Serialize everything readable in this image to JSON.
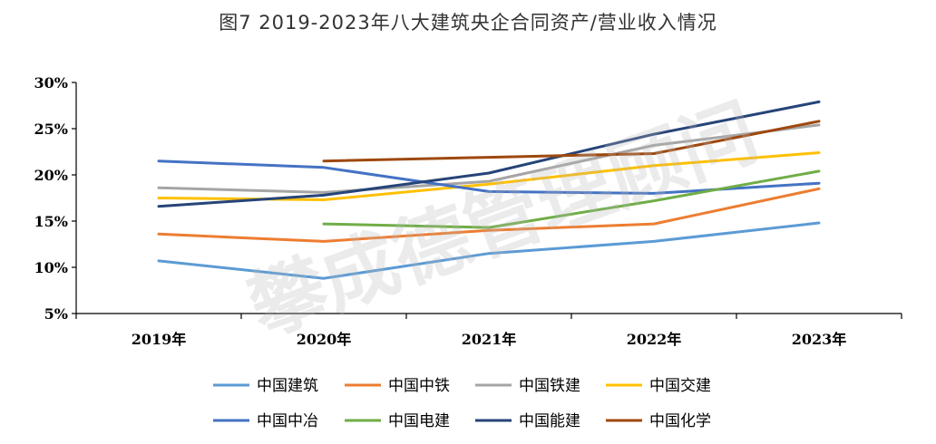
{
  "chart_data": {
    "type": "line",
    "title": "图7 2019-2023年八大建筑央企合同资产/营业收入情况",
    "xlabel": "",
    "ylabel": "",
    "categories": [
      "2019年",
      "2020年",
      "2021年",
      "2022年",
      "2023年"
    ],
    "ylim": [
      5,
      30
    ],
    "yticks": [
      "5%",
      "10%",
      "15%",
      "20%",
      "25%",
      "30%"
    ],
    "grid": false,
    "legend_position": "bottom",
    "watermark": "攀成德管理顾问",
    "series": [
      {
        "name": "中国建筑",
        "color": "#5b9bd5",
        "values": [
          10.7,
          8.8,
          11.5,
          12.8,
          14.8
        ]
      },
      {
        "name": "中国中铁",
        "color": "#ed7d31",
        "values": [
          13.6,
          12.8,
          14.0,
          14.7,
          18.5
        ]
      },
      {
        "name": "中国铁建",
        "color": "#a5a5a5",
        "values": [
          18.6,
          18.1,
          19.3,
          23.2,
          25.4
        ]
      },
      {
        "name": "中国交建",
        "color": "#ffc000",
        "values": [
          17.5,
          17.3,
          19.0,
          21.0,
          22.4
        ]
      },
      {
        "name": "中国中冶",
        "color": "#4472c4",
        "values": [
          21.5,
          20.8,
          18.2,
          18.0,
          19.1
        ]
      },
      {
        "name": "中国电建",
        "color": "#70ad47",
        "values": [
          null,
          14.7,
          14.3,
          17.2,
          20.4
        ]
      },
      {
        "name": "中国能建",
        "color": "#264478",
        "values": [
          16.6,
          17.8,
          20.2,
          24.4,
          27.9
        ]
      },
      {
        "name": "中国化学",
        "color": "#9e480e",
        "values": [
          null,
          21.5,
          21.9,
          22.3,
          25.8
        ]
      }
    ]
  }
}
